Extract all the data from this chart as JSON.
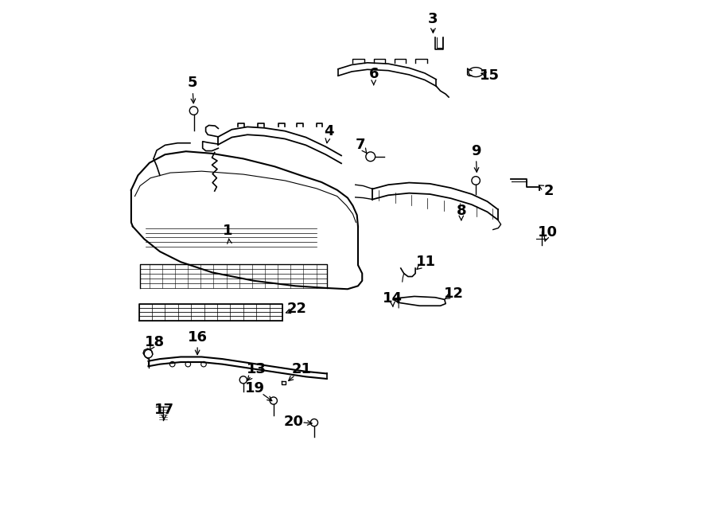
{
  "bg_color": "#ffffff",
  "line_color": "#000000",
  "fig_width": 9.0,
  "fig_height": 6.61,
  "dpi": 100,
  "label_positions": {
    "1": [
      0.25,
      0.562,
      0.252,
      0.548
    ],
    "2": [
      0.866,
      0.638,
      0.845,
      0.65
    ],
    "3": [
      0.644,
      0.968,
      0.644,
      0.935
    ],
    "4": [
      0.444,
      0.752,
      0.44,
      0.728
    ],
    "5": [
      0.182,
      0.845,
      0.185,
      0.8
    ],
    "6": [
      0.53,
      0.862,
      0.53,
      0.84
    ],
    "7": [
      0.505,
      0.726,
      0.52,
      0.706
    ],
    "8": [
      0.698,
      0.6,
      0.698,
      0.58
    ],
    "9": [
      0.726,
      0.715,
      0.728,
      0.668
    ],
    "10": [
      0.864,
      0.558,
      0.858,
      0.54
    ],
    "11": [
      0.63,
      0.502,
      0.608,
      0.484
    ],
    "12": [
      0.684,
      0.442,
      0.662,
      0.428
    ],
    "13": [
      0.306,
      0.296,
      0.284,
      0.27
    ],
    "14": [
      0.566,
      0.432,
      0.567,
      0.415
    ],
    "15": [
      0.752,
      0.86,
      0.735,
      0.864
    ],
    "16": [
      0.192,
      0.358,
      0.192,
      0.318
    ],
    "17": [
      0.128,
      0.218,
      0.128,
      0.198
    ],
    "18": [
      0.11,
      0.348,
      0.1,
      0.332
    ],
    "19": [
      0.302,
      0.26,
      0.34,
      0.232
    ],
    "20": [
      0.376,
      0.196,
      0.418,
      0.192
    ],
    "21": [
      0.392,
      0.296,
      0.362,
      0.27
    ],
    "22": [
      0.382,
      0.412,
      0.36,
      0.404
    ]
  }
}
